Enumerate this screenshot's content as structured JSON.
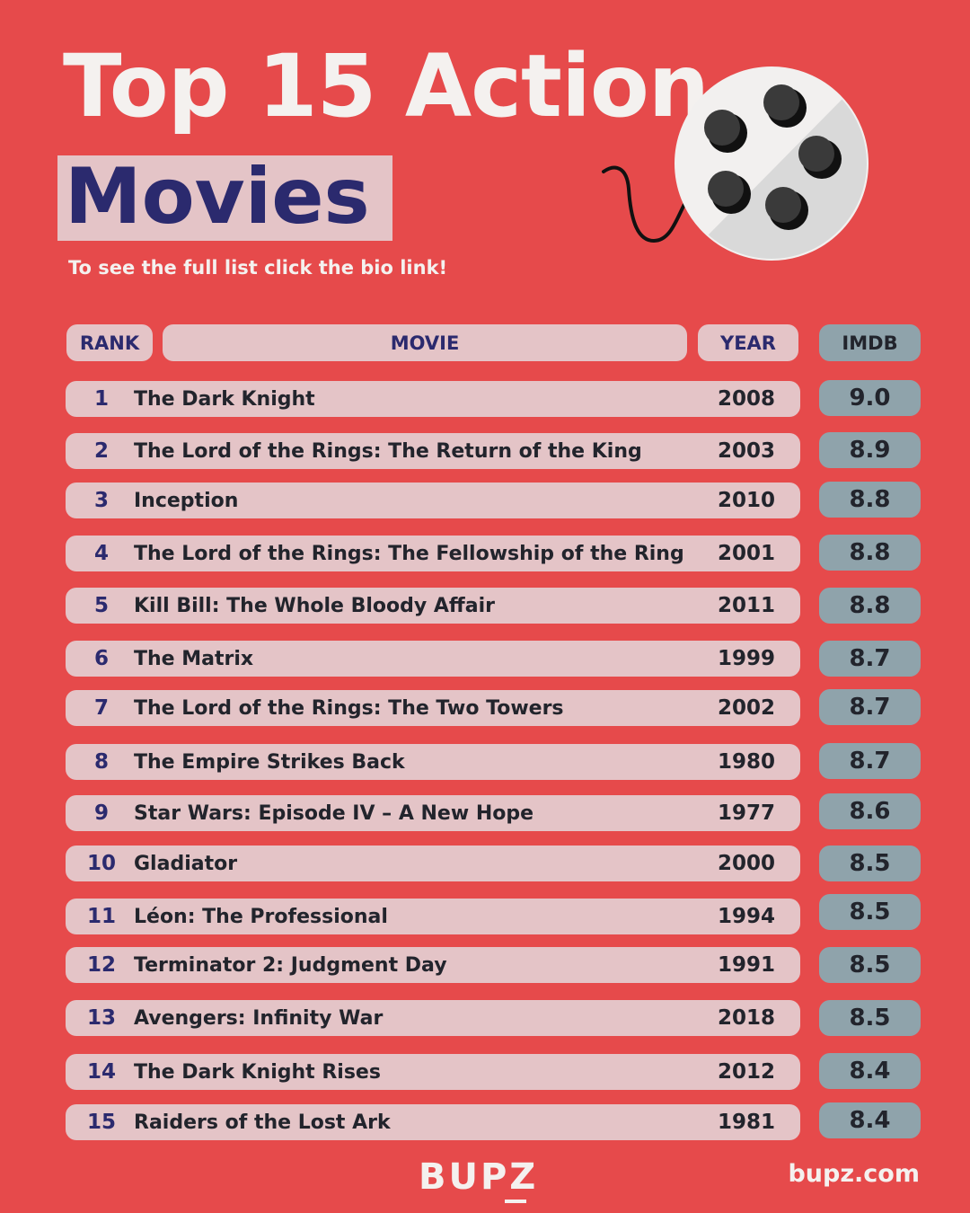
{
  "title": "Top 15 Action",
  "subtitle": "Movies",
  "tagline": "To see the full list click the bio link!",
  "headers": {
    "rank": "RANK",
    "movie": "MOVIE",
    "year": "YEAR",
    "imdb": "IMDB"
  },
  "rows": [
    {
      "rank": "1",
      "movie": "The Dark Knight",
      "year": "2008",
      "imdb": "9.0"
    },
    {
      "rank": "2",
      "movie": "The Lord of the Rings: The Return of the King",
      "year": "2003",
      "imdb": "8.9"
    },
    {
      "rank": "3",
      "movie": "Inception",
      "year": "2010",
      "imdb": "8.8"
    },
    {
      "rank": "4",
      "movie": "The Lord of the Rings: The Fellowship of the Ring",
      "year": "2001",
      "imdb": "8.8"
    },
    {
      "rank": "5",
      "movie": "Kill Bill: The Whole Bloody Affair",
      "year": "2011",
      "imdb": "8.8"
    },
    {
      "rank": "6",
      "movie": "The Matrix",
      "year": "1999",
      "imdb": "8.7"
    },
    {
      "rank": "7",
      "movie": "The Lord of the Rings: The Two Towers",
      "year": "2002",
      "imdb": "8.7"
    },
    {
      "rank": "8",
      "movie": "The Empire Strikes Back",
      "year": "1980",
      "imdb": "8.7"
    },
    {
      "rank": "9",
      "movie": "Star Wars: Episode IV – A New Hope",
      "year": "1977",
      "imdb": "8.6"
    },
    {
      "rank": "10",
      "movie": "Gladiator",
      "year": "2000",
      "imdb": "8.5"
    },
    {
      "rank": "11",
      "movie": "Léon: The Professional",
      "year": "1994",
      "imdb": "8.5"
    },
    {
      "rank": "12",
      "movie": "Terminator 2: Judgment Day",
      "year": "1991",
      "imdb": "8.5"
    },
    {
      "rank": "13",
      "movie": "Avengers: Infinity War",
      "year": "2018",
      "imdb": "8.5"
    },
    {
      "rank": "14",
      "movie": "The Dark Knight Rises",
      "year": "2012",
      "imdb": "8.4"
    },
    {
      "rank": "15",
      "movie": "Raiders of the Lost Ark",
      "year": "1981",
      "imdb": "8.4"
    }
  ],
  "footer": {
    "logo": "BUPZ",
    "site": "bupz.com"
  },
  "colors": {
    "background": "#e64a4b",
    "row": "#e4c4c7",
    "score": "#8fa3ab",
    "accent": "#2b2a6e"
  },
  "icons": {
    "reel": "film-reel-icon"
  }
}
